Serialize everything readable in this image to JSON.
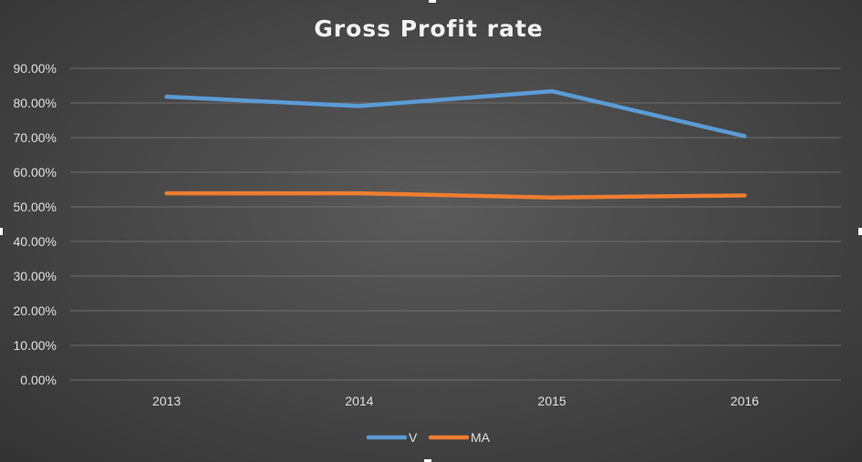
{
  "chart_data": {
    "type": "line",
    "title": "Gross Profit rate",
    "xlabel": "",
    "ylabel": "",
    "categories": [
      "2013",
      "2014",
      "2015",
      "2016"
    ],
    "ylim": [
      0,
      0.9
    ],
    "yticks": [
      0,
      0.1,
      0.2,
      0.3,
      0.4,
      0.5,
      0.6,
      0.7,
      0.8,
      0.9
    ],
    "ytick_labels": [
      "0.00%",
      "10.00%",
      "20.00%",
      "30.00%",
      "40.00%",
      "50.00%",
      "60.00%",
      "70.00%",
      "80.00%",
      "90.00%"
    ],
    "grid": true,
    "legend_position": "bottom",
    "series": [
      {
        "name": "V",
        "values": [
          0.818,
          0.791,
          0.834,
          0.704
        ],
        "color": "#5b9bd5"
      },
      {
        "name": "MA",
        "values": [
          0.539,
          0.539,
          0.527,
          0.533
        ],
        "color": "#ed7d31"
      }
    ]
  },
  "colors": {
    "background": "#454545",
    "gridline": "#6e6e6e",
    "text": "#e0e0e0"
  }
}
